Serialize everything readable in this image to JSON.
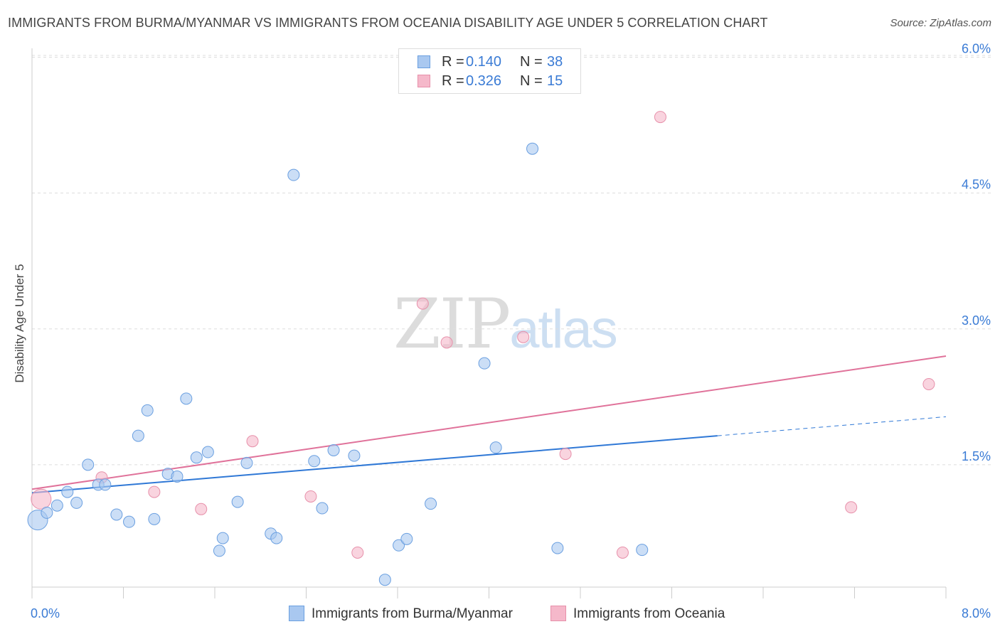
{
  "header": {
    "title": "IMMIGRANTS FROM BURMA/MYANMAR VS IMMIGRANTS FROM OCEANIA DISABILITY AGE UNDER 5 CORRELATION CHART",
    "source": "Source: ZipAtlas.com"
  },
  "watermark": {
    "zip": "ZIP",
    "atlas": "atlas"
  },
  "stats": [
    {
      "r_label": "R =",
      "r_value": "0.140",
      "n_label": "N =",
      "n_value": "38"
    },
    {
      "r_label": "R =",
      "r_value": "0.326",
      "n_label": "N =",
      "n_value": "15"
    }
  ],
  "colors": {
    "series1_fill": "#a9c8f0",
    "series1_stroke": "#6a9fe0",
    "series1_line": "#2f78d6",
    "series2_fill": "#f5b8ca",
    "series2_stroke": "#e790aa",
    "series2_line": "#e0729a",
    "tick_label": "#3a7bd5",
    "grid": "#dddddd"
  },
  "chart_data": {
    "type": "scatter",
    "title": "IMMIGRANTS FROM BURMA/MYANMAR VS IMMIGRANTS FROM OCEANIA DISABILITY AGE UNDER 5 CORRELATION CHART",
    "xlabel": "",
    "ylabel": "Disability Age Under 5",
    "xlim": [
      0,
      8
    ],
    "ylim": [
      0,
      6.2
    ],
    "x_tick_labels": [
      "0.0%",
      "8.0%"
    ],
    "y_ticks": [
      1.5,
      3.0,
      4.5,
      6.0
    ],
    "y_tick_labels": [
      "1.5%",
      "3.0%",
      "4.5%",
      "6.0%"
    ],
    "grid": true,
    "legend_position": "bottom",
    "series": [
      {
        "name": "Immigrants from Burma/Myanmar",
        "r": 0.14,
        "n": 38,
        "points": [
          {
            "x": 0.05,
            "y": 0.89,
            "big": true
          },
          {
            "x": 0.13,
            "y": 0.97
          },
          {
            "x": 0.22,
            "y": 1.05
          },
          {
            "x": 0.31,
            "y": 1.2
          },
          {
            "x": 0.39,
            "y": 1.08
          },
          {
            "x": 0.49,
            "y": 1.5
          },
          {
            "x": 0.58,
            "y": 1.28
          },
          {
            "x": 0.64,
            "y": 1.28
          },
          {
            "x": 0.74,
            "y": 0.95
          },
          {
            "x": 0.85,
            "y": 0.87
          },
          {
            "x": 0.93,
            "y": 1.82
          },
          {
            "x": 1.01,
            "y": 2.1
          },
          {
            "x": 1.07,
            "y": 0.9
          },
          {
            "x": 1.19,
            "y": 1.4
          },
          {
            "x": 1.27,
            "y": 1.37
          },
          {
            "x": 1.35,
            "y": 2.23
          },
          {
            "x": 1.44,
            "y": 1.58
          },
          {
            "x": 1.54,
            "y": 1.64
          },
          {
            "x": 1.64,
            "y": 0.55
          },
          {
            "x": 1.67,
            "y": 0.69
          },
          {
            "x": 1.8,
            "y": 1.09
          },
          {
            "x": 1.88,
            "y": 1.52
          },
          {
            "x": 2.09,
            "y": 0.74
          },
          {
            "x": 2.14,
            "y": 0.69
          },
          {
            "x": 2.29,
            "y": 4.7
          },
          {
            "x": 2.47,
            "y": 1.54
          },
          {
            "x": 2.54,
            "y": 1.02
          },
          {
            "x": 2.64,
            "y": 1.66
          },
          {
            "x": 2.82,
            "y": 1.6
          },
          {
            "x": 3.09,
            "y": 0.23
          },
          {
            "x": 3.21,
            "y": 0.61
          },
          {
            "x": 3.28,
            "y": 0.68
          },
          {
            "x": 3.49,
            "y": 1.07
          },
          {
            "x": 3.96,
            "y": 2.62
          },
          {
            "x": 4.06,
            "y": 1.69
          },
          {
            "x": 4.38,
            "y": 4.99
          },
          {
            "x": 4.6,
            "y": 0.58
          },
          {
            "x": 5.34,
            "y": 0.56
          }
        ],
        "trend": {
          "x0": 0,
          "y0": 1.19,
          "x1": 6.0,
          "y1": 1.82,
          "dashed_to_x": 8.0,
          "dashed_to_y": 2.03
        }
      },
      {
        "name": "Immigrants from Oceania",
        "r": 0.326,
        "n": 15,
        "points": [
          {
            "x": 0.08,
            "y": 1.12,
            "big": true
          },
          {
            "x": 0.61,
            "y": 1.36
          },
          {
            "x": 1.07,
            "y": 1.2
          },
          {
            "x": 1.48,
            "y": 1.01
          },
          {
            "x": 1.93,
            "y": 1.76
          },
          {
            "x": 2.44,
            "y": 1.15
          },
          {
            "x": 2.85,
            "y": 0.53
          },
          {
            "x": 3.42,
            "y": 3.28
          },
          {
            "x": 3.63,
            "y": 2.85
          },
          {
            "x": 4.3,
            "y": 2.91
          },
          {
            "x": 4.67,
            "y": 1.62
          },
          {
            "x": 5.17,
            "y": 0.53
          },
          {
            "x": 5.5,
            "y": 5.34
          },
          {
            "x": 7.17,
            "y": 1.03
          },
          {
            "x": 7.85,
            "y": 2.39
          }
        ],
        "trend": {
          "x0": 0,
          "y0": 1.23,
          "x1": 8.0,
          "y1": 2.7
        }
      }
    ]
  }
}
